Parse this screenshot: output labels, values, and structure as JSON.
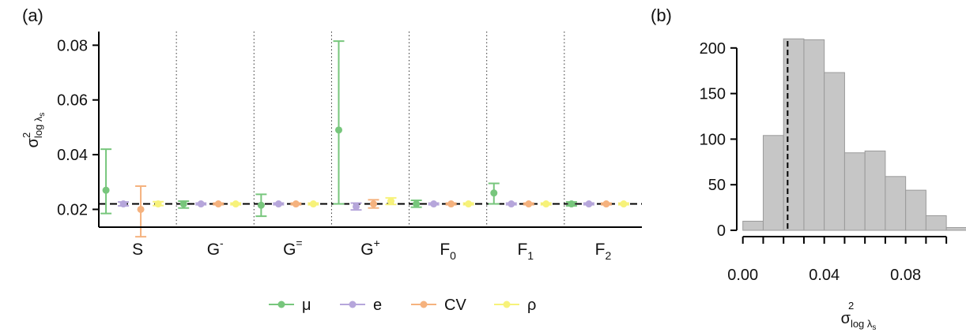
{
  "chart_data": [
    {
      "panel_label": "(a)",
      "type": "scatter",
      "subtype": "point-with-error-bars",
      "ylabel": {
        "base": "σ",
        "sup": "2",
        "sub": "log λ",
        "subsub": "s"
      },
      "ylim": [
        0.0135,
        0.085
      ],
      "yticks": [
        0.02,
        0.04,
        0.06,
        0.08
      ],
      "ytick_labels": [
        "0.02",
        "0.04",
        "0.06",
        "0.08"
      ],
      "reference_line": 0.022,
      "reference_style": "dashed",
      "group_separators": "dotted",
      "groups": [
        {
          "base": "S",
          "sup": "",
          "sub": ""
        },
        {
          "base": "G",
          "sup": "-",
          "sub": ""
        },
        {
          "base": "G",
          "sup": "=",
          "sub": ""
        },
        {
          "base": "G",
          "sup": "+",
          "sub": ""
        },
        {
          "base": "F",
          "sup": "",
          "sub": "0"
        },
        {
          "base": "F",
          "sup": "",
          "sub": "1"
        },
        {
          "base": "F",
          "sup": "",
          "sub": "2"
        }
      ],
      "series": [
        {
          "name": "μ",
          "color": "#77c67c",
          "points": [
            {
              "y": 0.027,
              "lo": 0.0185,
              "hi": 0.042
            },
            {
              "y": 0.022,
              "lo": 0.0205,
              "hi": 0.023
            },
            {
              "y": 0.0215,
              "lo": 0.0175,
              "hi": 0.0255
            },
            {
              "y": 0.049,
              "lo": 0.022,
              "hi": 0.0815
            },
            {
              "y": 0.022,
              "lo": 0.0208,
              "hi": 0.0233
            },
            {
              "y": 0.026,
              "lo": 0.022,
              "hi": 0.0295
            },
            {
              "y": 0.022,
              "lo": 0.0213,
              "hi": 0.0227
            }
          ]
        },
        {
          "name": "e",
          "color": "#b6a6db",
          "points": [
            {
              "y": 0.022,
              "lo": 0.0213,
              "hi": 0.0227
            },
            {
              "y": 0.022,
              "lo": 0.0217,
              "hi": 0.0223
            },
            {
              "y": 0.022,
              "lo": 0.0217,
              "hi": 0.0223
            },
            {
              "y": 0.021,
              "lo": 0.0198,
              "hi": 0.0223
            },
            {
              "y": 0.022,
              "lo": 0.0217,
              "hi": 0.0223
            },
            {
              "y": 0.022,
              "lo": 0.0217,
              "hi": 0.0223
            },
            {
              "y": 0.022,
              "lo": 0.0217,
              "hi": 0.0223
            }
          ]
        },
        {
          "name": "CV",
          "color": "#f5b27e",
          "points": [
            {
              "y": 0.02,
              "lo": 0.01,
              "hi": 0.0285
            },
            {
              "y": 0.022,
              "lo": 0.0217,
              "hi": 0.0223
            },
            {
              "y": 0.022,
              "lo": 0.0217,
              "hi": 0.0223
            },
            {
              "y": 0.022,
              "lo": 0.0205,
              "hi": 0.0235
            },
            {
              "y": 0.022,
              "lo": 0.0217,
              "hi": 0.0223
            },
            {
              "y": 0.022,
              "lo": 0.0217,
              "hi": 0.0223
            },
            {
              "y": 0.022,
              "lo": 0.0217,
              "hi": 0.0223
            }
          ]
        },
        {
          "name": "ρ",
          "color": "#f7f27a",
          "points": [
            {
              "y": 0.022,
              "lo": 0.0214,
              "hi": 0.0228
            },
            {
              "y": 0.022,
              "lo": 0.0217,
              "hi": 0.0223
            },
            {
              "y": 0.022,
              "lo": 0.0217,
              "hi": 0.0223
            },
            {
              "y": 0.023,
              "lo": 0.0218,
              "hi": 0.0242
            },
            {
              "y": 0.022,
              "lo": 0.0217,
              "hi": 0.0223
            },
            {
              "y": 0.022,
              "lo": 0.0217,
              "hi": 0.0223
            },
            {
              "y": 0.022,
              "lo": 0.0217,
              "hi": 0.0223
            }
          ]
        }
      ],
      "legend": {
        "placement": "bottom",
        "entries": [
          "μ",
          "e",
          "CV",
          "ρ"
        ]
      }
    },
    {
      "panel_label": "(b)",
      "type": "bar",
      "subtype": "histogram",
      "bar_color": "#c6c6c6",
      "bar_edge_color": "#9a9a9a",
      "bins": [
        {
          "x0": 0.0,
          "x1": 0.01,
          "count": 10
        },
        {
          "x0": 0.01,
          "x1": 0.02,
          "count": 104
        },
        {
          "x0": 0.02,
          "x1": 0.03,
          "count": 210
        },
        {
          "x0": 0.03,
          "x1": 0.04,
          "count": 209
        },
        {
          "x0": 0.04,
          "x1": 0.05,
          "count": 173
        },
        {
          "x0": 0.05,
          "x1": 0.06,
          "count": 85
        },
        {
          "x0": 0.06,
          "x1": 0.07,
          "count": 87
        },
        {
          "x0": 0.07,
          "x1": 0.08,
          "count": 59
        },
        {
          "x0": 0.08,
          "x1": 0.09,
          "count": 44
        },
        {
          "x0": 0.09,
          "x1": 0.1,
          "count": 16
        },
        {
          "x0": 0.1,
          "x1": 0.11,
          "count": 3
        }
      ],
      "xlim": [
        -0.003,
        0.105
      ],
      "ylim": [
        0,
        218
      ],
      "xticks": [
        0.0,
        0.01,
        0.02,
        0.03,
        0.04,
        0.05,
        0.06,
        0.07,
        0.08,
        0.09,
        0.1
      ],
      "xtick_labels": [
        {
          "value": 0.0,
          "label": "0.00"
        },
        {
          "value": 0.04,
          "label": "0.04"
        },
        {
          "value": 0.08,
          "label": "0.08"
        }
      ],
      "yticks": [
        0,
        50,
        100,
        150,
        200
      ],
      "ytick_labels": [
        "0",
        "50",
        "100",
        "150",
        "200"
      ],
      "reference_line": 0.022,
      "reference_style": "dashed",
      "xlabel": {
        "base": "σ",
        "sup": "2",
        "sub": "log λ",
        "subsub": "s"
      },
      "ylabel": ""
    }
  ]
}
